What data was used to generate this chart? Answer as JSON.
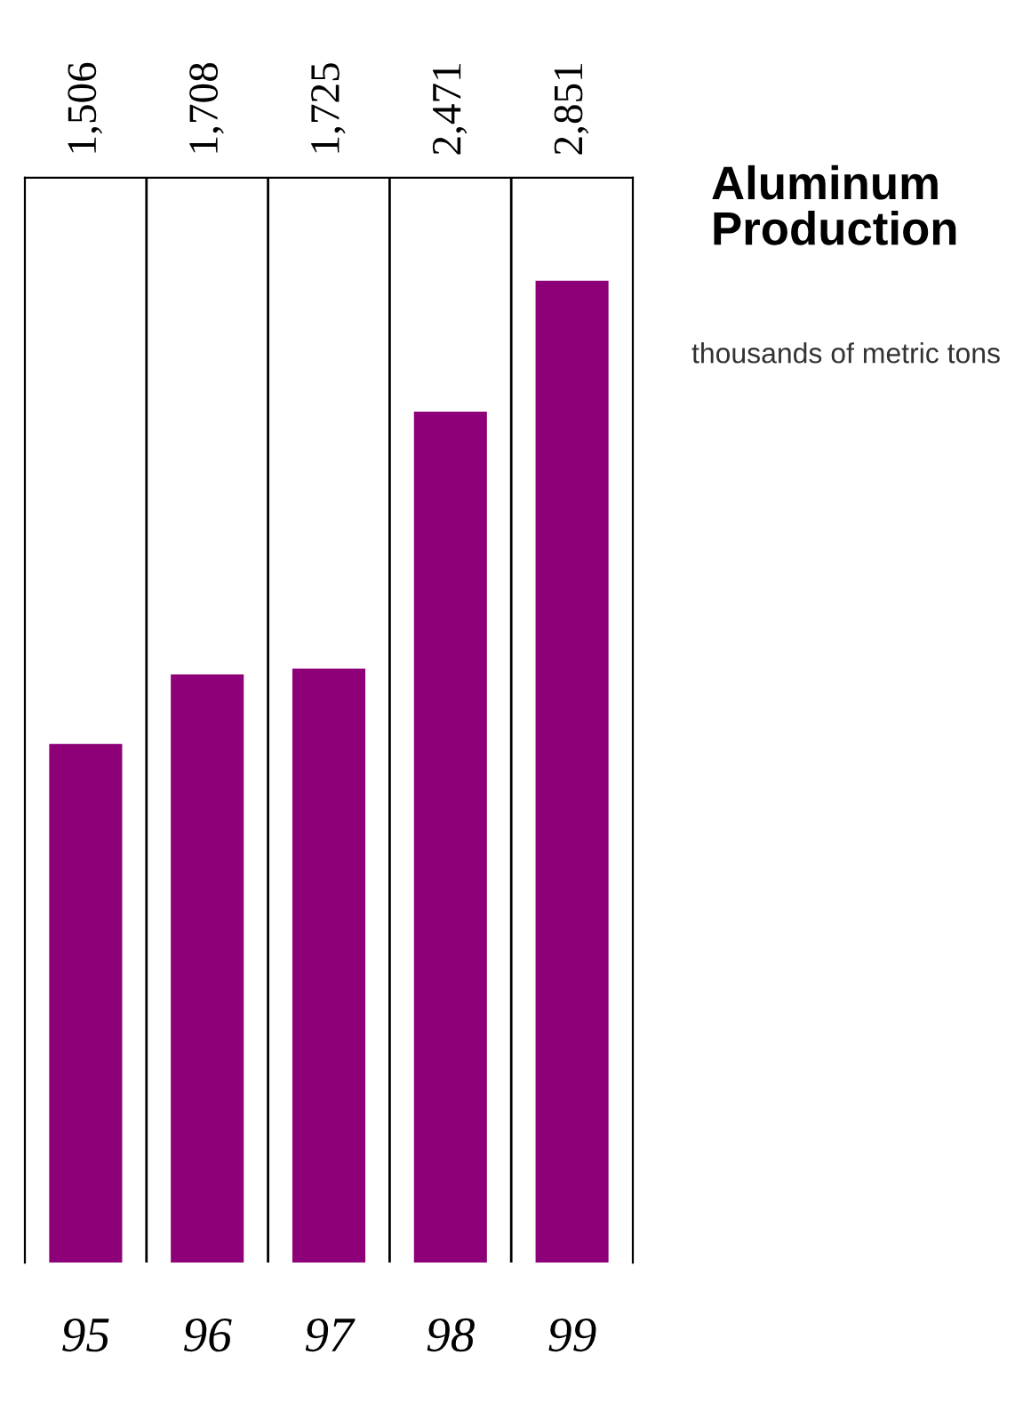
{
  "chart_data": {
    "type": "bar",
    "title": "Aluminum Production",
    "subtitle": "thousands of metric tons",
    "categories": [
      "95",
      "96",
      "97",
      "98",
      "99"
    ],
    "values": [
      1506,
      1708,
      1725,
      2471,
      2851
    ],
    "value_labels": [
      "1,506",
      "1,708",
      "1,725",
      "2,471",
      "2,851"
    ],
    "color": "#8e0078",
    "ylim": [
      0,
      3150
    ],
    "tick_labels": "x",
    "grid": "x"
  }
}
